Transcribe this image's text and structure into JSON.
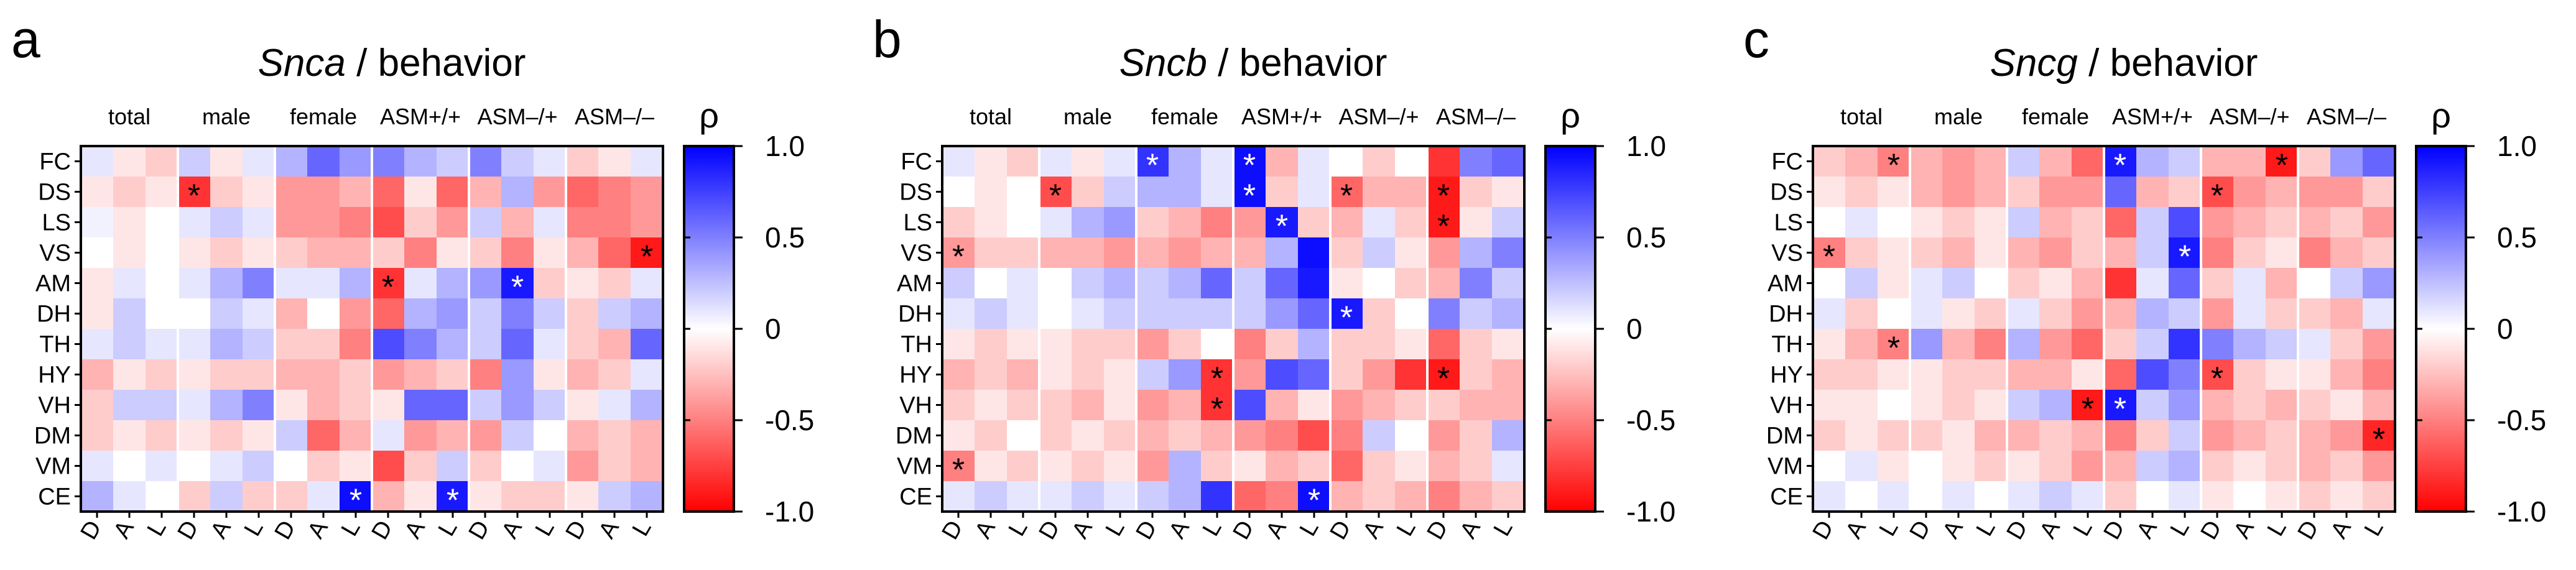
{
  "chart_data": [
    {
      "type": "heatmap",
      "panel_label": "a",
      "title_gene": "Snca",
      "title_rest": " / behavior",
      "group_labels": [
        "total",
        "male",
        "female",
        "ASM+/+",
        "ASM–/+",
        "ASM–/–"
      ],
      "column_labels": [
        "D",
        "A",
        "L"
      ],
      "row_labels": [
        "FC",
        "DS",
        "LS",
        "VS",
        "AM",
        "DH",
        "TH",
        "HY",
        "VH",
        "DM",
        "VM",
        "CE"
      ],
      "colorbar_label": "ρ",
      "colorbar_ticks": [
        "1.0",
        "0.5",
        "0",
        "-0.5",
        "-1.0"
      ],
      "vlim": [
        -1,
        1
      ],
      "values": [
        [
          0.1,
          -0.1,
          -0.2,
          0.2,
          -0.1,
          0.1,
          0.3,
          0.6,
          0.4,
          0.5,
          0.3,
          0.2,
          0.5,
          0.2,
          0.1,
          -0.2,
          -0.1,
          0.1
        ],
        [
          -0.1,
          -0.2,
          -0.1,
          -0.8,
          -0.2,
          -0.1,
          -0.4,
          -0.4,
          -0.3,
          -0.6,
          -0.1,
          -0.6,
          -0.3,
          0.3,
          -0.4,
          -0.6,
          -0.5,
          -0.4
        ],
        [
          0.05,
          -0.1,
          0.0,
          0.1,
          0.2,
          0.1,
          -0.4,
          -0.4,
          -0.5,
          -0.7,
          -0.2,
          -0.4,
          0.2,
          -0.3,
          0.1,
          -0.5,
          -0.5,
          -0.4
        ],
        [
          0.0,
          -0.1,
          0.0,
          -0.1,
          -0.2,
          -0.1,
          -0.2,
          -0.3,
          -0.3,
          -0.2,
          -0.5,
          -0.1,
          -0.2,
          -0.5,
          -0.1,
          -0.3,
          -0.6,
          -0.9
        ],
        [
          -0.1,
          0.1,
          0.0,
          0.1,
          0.3,
          0.5,
          0.1,
          0.1,
          0.3,
          -0.8,
          0.1,
          0.3,
          0.4,
          0.9,
          -0.2,
          -0.1,
          -0.2,
          0.1
        ],
        [
          -0.1,
          0.2,
          0.0,
          0.0,
          0.2,
          0.1,
          -0.3,
          0.0,
          -0.4,
          -0.6,
          0.3,
          0.4,
          0.2,
          0.5,
          0.2,
          -0.2,
          0.2,
          0.3
        ],
        [
          0.1,
          0.2,
          0.1,
          0.1,
          0.3,
          0.2,
          -0.2,
          -0.2,
          -0.5,
          0.7,
          0.5,
          0.3,
          0.2,
          0.6,
          0.1,
          -0.2,
          -0.3,
          0.6
        ],
        [
          -0.3,
          -0.1,
          -0.2,
          -0.1,
          -0.2,
          -0.2,
          -0.3,
          -0.3,
          -0.2,
          -0.4,
          -0.3,
          -0.2,
          -0.5,
          0.4,
          -0.1,
          -0.3,
          -0.2,
          0.1
        ],
        [
          -0.2,
          0.2,
          0.2,
          0.1,
          0.3,
          0.5,
          -0.1,
          -0.3,
          -0.2,
          -0.1,
          0.6,
          0.6,
          0.2,
          0.4,
          0.2,
          -0.1,
          0.1,
          0.3
        ],
        [
          -0.2,
          -0.1,
          -0.2,
          -0.1,
          -0.2,
          -0.1,
          0.2,
          -0.6,
          -0.3,
          0.1,
          -0.4,
          -0.3,
          -0.4,
          0.2,
          0.0,
          -0.3,
          -0.2,
          -0.3
        ],
        [
          0.1,
          0.0,
          0.1,
          0.0,
          0.1,
          0.2,
          0.0,
          -0.2,
          -0.1,
          -0.7,
          -0.2,
          0.2,
          -0.2,
          0.0,
          0.1,
          -0.4,
          -0.2,
          -0.3
        ],
        [
          0.3,
          0.1,
          0.0,
          -0.2,
          0.2,
          -0.2,
          -0.2,
          0.1,
          0.95,
          -0.3,
          -0.1,
          0.9,
          -0.1,
          -0.2,
          -0.2,
          -0.1,
          0.2,
          0.3
        ]
      ],
      "significant": [
        [
          1,
          3,
          0.9
        ],
        [
          3,
          17,
          0.1
        ],
        [
          4,
          9,
          0.9
        ],
        [
          4,
          13,
          0.1
        ],
        [
          11,
          8,
          0.1
        ],
        [
          11,
          11,
          0.1
        ]
      ]
    },
    {
      "type": "heatmap",
      "panel_label": "b",
      "title_gene": "Sncb",
      "title_rest": " / behavior",
      "group_labels": [
        "total",
        "male",
        "female",
        "ASM+/+",
        "ASM–/+",
        "ASM–/–"
      ],
      "column_labels": [
        "D",
        "A",
        "L"
      ],
      "row_labels": [
        "FC",
        "DS",
        "LS",
        "VS",
        "AM",
        "DH",
        "TH",
        "HY",
        "VH",
        "DM",
        "VM",
        "CE"
      ],
      "colorbar_label": "ρ",
      "colorbar_ticks": [
        "1.0",
        "0.5",
        "0",
        "-0.5",
        "-1.0"
      ],
      "vlim": [
        -1,
        1
      ],
      "values": [
        [
          0.1,
          -0.1,
          -0.2,
          0.1,
          -0.1,
          0.1,
          0.8,
          0.3,
          0.1,
          0.95,
          -0.3,
          0.1,
          0.0,
          -0.2,
          0.0,
          -0.8,
          0.5,
          0.6
        ],
        [
          0.0,
          -0.1,
          0.0,
          -0.7,
          -0.2,
          0.2,
          0.3,
          0.3,
          0.1,
          0.95,
          -0.2,
          0.1,
          -0.6,
          -0.3,
          -0.3,
          -0.9,
          -0.2,
          -0.1
        ],
        [
          -0.2,
          -0.1,
          0.0,
          0.1,
          0.3,
          0.4,
          -0.2,
          -0.3,
          -0.5,
          -0.4,
          0.9,
          -0.2,
          -0.3,
          0.1,
          -0.2,
          -0.9,
          -0.1,
          0.2
        ],
        [
          -0.4,
          -0.2,
          -0.2,
          -0.3,
          -0.3,
          -0.4,
          -0.3,
          -0.4,
          -0.3,
          -0.3,
          0.3,
          0.95,
          -0.2,
          0.2,
          -0.1,
          -0.4,
          0.3,
          0.5
        ],
        [
          0.2,
          0.0,
          0.1,
          0.0,
          0.2,
          0.3,
          0.2,
          0.3,
          0.6,
          0.2,
          0.6,
          0.9,
          -0.1,
          0.0,
          -0.2,
          -0.3,
          0.5,
          0.2
        ],
        [
          0.1,
          0.2,
          0.1,
          0.0,
          0.1,
          0.2,
          0.2,
          0.2,
          0.2,
          0.2,
          0.4,
          0.6,
          0.9,
          -0.2,
          0.0,
          0.5,
          0.2,
          0.3
        ],
        [
          -0.1,
          -0.2,
          -0.1,
          -0.1,
          -0.2,
          -0.2,
          -0.4,
          -0.2,
          0.0,
          -0.5,
          -0.2,
          0.3,
          -0.2,
          -0.2,
          -0.1,
          -0.6,
          -0.2,
          -0.1
        ],
        [
          -0.3,
          -0.2,
          -0.3,
          -0.1,
          -0.2,
          -0.1,
          0.2,
          0.4,
          -0.8,
          -0.4,
          0.7,
          0.6,
          -0.2,
          -0.4,
          -0.8,
          -0.9,
          -0.2,
          -0.3
        ],
        [
          -0.2,
          -0.1,
          -0.2,
          -0.2,
          -0.3,
          -0.1,
          -0.4,
          -0.3,
          -0.8,
          0.7,
          -0.3,
          -0.1,
          -0.4,
          -0.3,
          -0.2,
          -0.2,
          -0.3,
          -0.3
        ],
        [
          -0.1,
          -0.2,
          0.0,
          -0.2,
          -0.1,
          -0.2,
          -0.3,
          -0.2,
          -0.3,
          -0.4,
          -0.5,
          -0.7,
          -0.5,
          0.2,
          0.0,
          -0.4,
          -0.2,
          0.3
        ],
        [
          -0.5,
          -0.1,
          -0.2,
          -0.1,
          -0.2,
          -0.1,
          -0.4,
          0.3,
          -0.2,
          -0.1,
          -0.3,
          -0.2,
          -0.6,
          -0.2,
          -0.1,
          -0.3,
          -0.2,
          0.1
        ],
        [
          0.1,
          0.2,
          0.1,
          0.1,
          0.2,
          0.1,
          0.2,
          0.3,
          0.8,
          -0.6,
          -0.5,
          0.95,
          -0.3,
          -0.2,
          -0.3,
          -0.5,
          -0.3,
          -0.2
        ]
      ],
      "significant": [
        [
          0,
          6,
          0.9
        ],
        [
          0,
          9,
          0.9
        ],
        [
          1,
          3,
          0.1
        ],
        [
          1,
          9,
          0.9
        ],
        [
          1,
          12,
          0.1
        ],
        [
          1,
          15,
          0.1
        ],
        [
          2,
          10,
          0.9
        ],
        [
          2,
          15,
          0.1
        ],
        [
          3,
          0,
          0.1
        ],
        [
          5,
          12,
          0.9
        ],
        [
          7,
          8,
          0.1
        ],
        [
          7,
          15,
          0.1
        ],
        [
          8,
          8,
          0.1
        ],
        [
          10,
          0,
          0.1
        ],
        [
          11,
          11,
          0.9
        ]
      ]
    },
    {
      "type": "heatmap",
      "panel_label": "c",
      "title_gene": "Sncg",
      "title_rest": " / behavior",
      "group_labels": [
        "total",
        "male",
        "female",
        "ASM+/+",
        "ASM–/+",
        "ASM–/–"
      ],
      "column_labels": [
        "D",
        "A",
        "L"
      ],
      "row_labels": [
        "FC",
        "DS",
        "LS",
        "VS",
        "AM",
        "DH",
        "TH",
        "HY",
        "VH",
        "DM",
        "VM",
        "CE"
      ],
      "colorbar_label": "ρ",
      "colorbar_ticks": [
        "1.0",
        "0.5",
        "0",
        "-0.5",
        "-1.0"
      ],
      "vlim": [
        -1,
        1
      ],
      "values": [
        [
          -0.2,
          -0.3,
          -0.5,
          -0.3,
          -0.4,
          -0.3,
          0.2,
          -0.3,
          -0.6,
          0.9,
          0.3,
          0.2,
          -0.3,
          -0.3,
          -0.9,
          -0.2,
          0.4,
          0.6
        ],
        [
          -0.1,
          -0.2,
          -0.1,
          -0.3,
          -0.4,
          -0.3,
          -0.2,
          -0.4,
          -0.4,
          0.6,
          -0.3,
          -0.2,
          -0.7,
          -0.4,
          -0.3,
          -0.4,
          -0.4,
          -0.2
        ],
        [
          0.0,
          0.1,
          0.0,
          -0.1,
          -0.2,
          -0.1,
          0.2,
          -0.3,
          -0.2,
          -0.6,
          0.2,
          0.7,
          -0.4,
          -0.3,
          -0.2,
          -0.3,
          -0.2,
          -0.4
        ],
        [
          -0.5,
          -0.2,
          -0.1,
          -0.2,
          -0.3,
          -0.1,
          -0.3,
          -0.4,
          -0.2,
          -0.3,
          0.2,
          0.9,
          -0.5,
          -0.2,
          -0.1,
          -0.5,
          -0.3,
          -0.2
        ],
        [
          0.0,
          0.2,
          -0.1,
          0.1,
          0.2,
          0.0,
          -0.2,
          -0.1,
          -0.3,
          -0.8,
          0.1,
          0.6,
          -0.2,
          0.1,
          -0.3,
          0.0,
          0.2,
          0.4
        ],
        [
          0.1,
          -0.2,
          0.0,
          0.1,
          -0.1,
          -0.2,
          0.1,
          -0.2,
          -0.4,
          -0.3,
          0.3,
          0.2,
          -0.4,
          0.1,
          -0.2,
          -0.2,
          -0.3,
          0.1
        ],
        [
          -0.1,
          -0.3,
          -0.5,
          0.4,
          -0.3,
          -0.5,
          0.3,
          -0.4,
          -0.6,
          -0.2,
          0.2,
          0.8,
          0.5,
          0.3,
          0.2,
          0.1,
          -0.2,
          -0.4
        ],
        [
          -0.2,
          -0.2,
          -0.1,
          -0.1,
          -0.2,
          -0.2,
          -0.3,
          -0.3,
          -0.1,
          -0.6,
          0.7,
          0.5,
          -0.7,
          -0.2,
          -0.1,
          -0.1,
          -0.3,
          -0.5
        ],
        [
          -0.1,
          -0.1,
          0.0,
          -0.1,
          -0.2,
          -0.1,
          0.2,
          0.3,
          -0.9,
          0.9,
          0.2,
          0.4,
          -0.3,
          -0.2,
          -0.3,
          -0.2,
          -0.1,
          -0.3
        ],
        [
          -0.2,
          -0.1,
          -0.2,
          -0.2,
          -0.1,
          -0.3,
          -0.3,
          -0.2,
          -0.3,
          -0.5,
          -0.2,
          0.2,
          -0.4,
          -0.3,
          -0.2,
          -0.3,
          -0.4,
          -0.85
        ],
        [
          0.0,
          0.1,
          -0.1,
          0.0,
          -0.1,
          -0.2,
          -0.1,
          -0.2,
          -0.4,
          -0.3,
          0.2,
          0.3,
          -0.2,
          -0.1,
          -0.2,
          -0.3,
          -0.2,
          -0.4
        ],
        [
          0.1,
          0.0,
          0.1,
          0.0,
          0.1,
          0.0,
          0.1,
          0.2,
          0.1,
          -0.2,
          0.0,
          0.1,
          -0.1,
          0.0,
          -0.1,
          -0.2,
          -0.1,
          -0.2
        ]
      ],
      "significant": [
        [
          0,
          2,
          0.1
        ],
        [
          0,
          9,
          0.9
        ],
        [
          0,
          14,
          0.1
        ],
        [
          1,
          12,
          0.1
        ],
        [
          3,
          0,
          0.1
        ],
        [
          3,
          11,
          0.9
        ],
        [
          6,
          2,
          0.1
        ],
        [
          7,
          12,
          0.1
        ],
        [
          8,
          8,
          0.1
        ],
        [
          8,
          9,
          0.9
        ],
        [
          9,
          17,
          0.1
        ]
      ]
    }
  ]
}
